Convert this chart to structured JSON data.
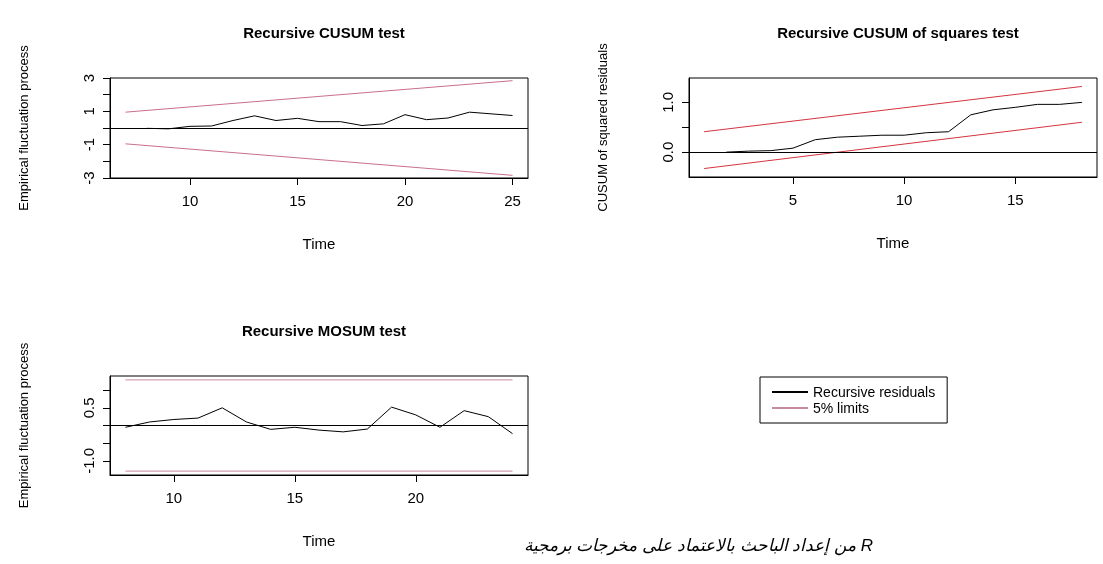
{
  "chart_data": [
    {
      "type": "line",
      "title": "Recursive CUSUM test",
      "xlabel": "Time",
      "ylabel": "Empirical fluctuation process",
      "xlim": [
        6.28,
        25.72
      ],
      "xticks": [
        10,
        15,
        20,
        25
      ],
      "ylim": [
        -3,
        3
      ],
      "yticks": [
        {
          "value": -3,
          "label": "-3"
        },
        {
          "value": -2,
          "label": null
        },
        {
          "value": -1,
          "label": "-1"
        },
        {
          "value": 0,
          "label": null
        },
        {
          "value": 1,
          "label": "1"
        },
        {
          "value": 2,
          "label": null
        },
        {
          "value": 3,
          "label": "3"
        }
      ],
      "ref_lines": [
        {
          "axis": "y",
          "value": 0,
          "color": "#000000"
        }
      ],
      "series": [
        {
          "color": "#000000",
          "x": [
            8,
            9,
            10,
            11,
            12,
            13,
            14,
            15,
            16,
            17,
            18,
            19,
            20,
            21,
            22,
            23,
            24,
            25
          ],
          "values": [
            -0.02,
            -0.05,
            0.1,
            0.12,
            0.45,
            0.73,
            0.45,
            0.58,
            0.38,
            0.38,
            0.15,
            0.25,
            0.8,
            0.5,
            0.6,
            0.95,
            0.85,
            0.75
          ]
        },
        {
          "color": "#c9708c",
          "x": [
            7,
            25
          ],
          "values": [
            0.95,
            2.84
          ]
        },
        {
          "color": "#c9708c",
          "x": [
            7,
            25
          ],
          "values": [
            -0.95,
            -2.84
          ]
        }
      ]
    },
    {
      "type": "line",
      "title": "Recursive CUSUM of squares test",
      "xlabel": "Time",
      "ylabel": "CUSUM of squared residuals",
      "xlim": [
        0.32,
        18.68
      ],
      "xticks": [
        5,
        10,
        15
      ],
      "ylim": [
        -0.5,
        1.49
      ],
      "yticks": [
        {
          "value": 0,
          "label": "0.0"
        },
        {
          "value": 0.5,
          "label": null
        },
        {
          "value": 1,
          "label": "1.0"
        }
      ],
      "ref_lines": [
        {
          "axis": "y",
          "value": 0,
          "color": "#000000"
        }
      ],
      "series": [
        {
          "color": "#000000",
          "x": [
            2,
            3,
            4,
            5,
            6,
            7,
            8,
            9,
            10,
            11,
            12,
            13,
            14,
            15,
            16,
            17,
            18
          ],
          "values": [
            0,
            0.02,
            0.03,
            0.08,
            0.25,
            0.3,
            0.32,
            0.34,
            0.34,
            0.39,
            0.41,
            0.75,
            0.85,
            0.9,
            0.96,
            0.96,
            1.0
          ]
        },
        {
          "color": "#d4333f",
          "x": [
            1,
            18
          ],
          "values": [
            0.41,
            1.32
          ]
        },
        {
          "color": "#d4333f",
          "x": [
            1,
            18
          ],
          "values": [
            -0.33,
            0.6
          ]
        }
      ]
    },
    {
      "type": "line",
      "title": "Recursive MOSUM test",
      "xlabel": "Time",
      "ylabel": "Empirical fluctuation process",
      "xlim": [
        7.36,
        24.64
      ],
      "xticks": [
        10,
        15,
        20
      ],
      "ylim": [
        -1.4,
        1.4
      ],
      "yticks": [
        {
          "value": -1,
          "label": "-1.0"
        },
        {
          "value": -0.5,
          "label": null
        },
        {
          "value": 0,
          "label": null
        },
        {
          "value": 0.5,
          "label": "0.5"
        },
        {
          "value": 1,
          "label": null
        }
      ],
      "ref_lines": [
        {
          "axis": "y",
          "value": 0,
          "color": "#000000"
        }
      ],
      "legend": "right",
      "annotations": [
        "من إعداد الباحث بالاعتماد على مخرجات برمجية R"
      ],
      "series": [
        {
          "name": "Recursive residuals",
          "color": "#000000",
          "x": [
            8,
            9,
            10,
            11,
            12,
            13,
            14,
            15,
            16,
            17,
            18,
            19,
            20,
            21,
            22,
            23,
            24
          ],
          "values": [
            -0.05,
            0.1,
            0.17,
            0.21,
            0.5,
            0.1,
            -0.11,
            -0.05,
            -0.13,
            -0.18,
            -0.1,
            0.52,
            0.3,
            -0.05,
            0.42,
            0.25,
            -0.23
          ]
        },
        {
          "name": "5% limits",
          "color": "#c98a9e",
          "x": [
            8,
            24
          ],
          "values": [
            1.29,
            1.29
          ]
        },
        {
          "color": "#c98a9e",
          "x": [
            8,
            24
          ],
          "values": [
            -1.29,
            -1.29
          ]
        }
      ]
    }
  ]
}
